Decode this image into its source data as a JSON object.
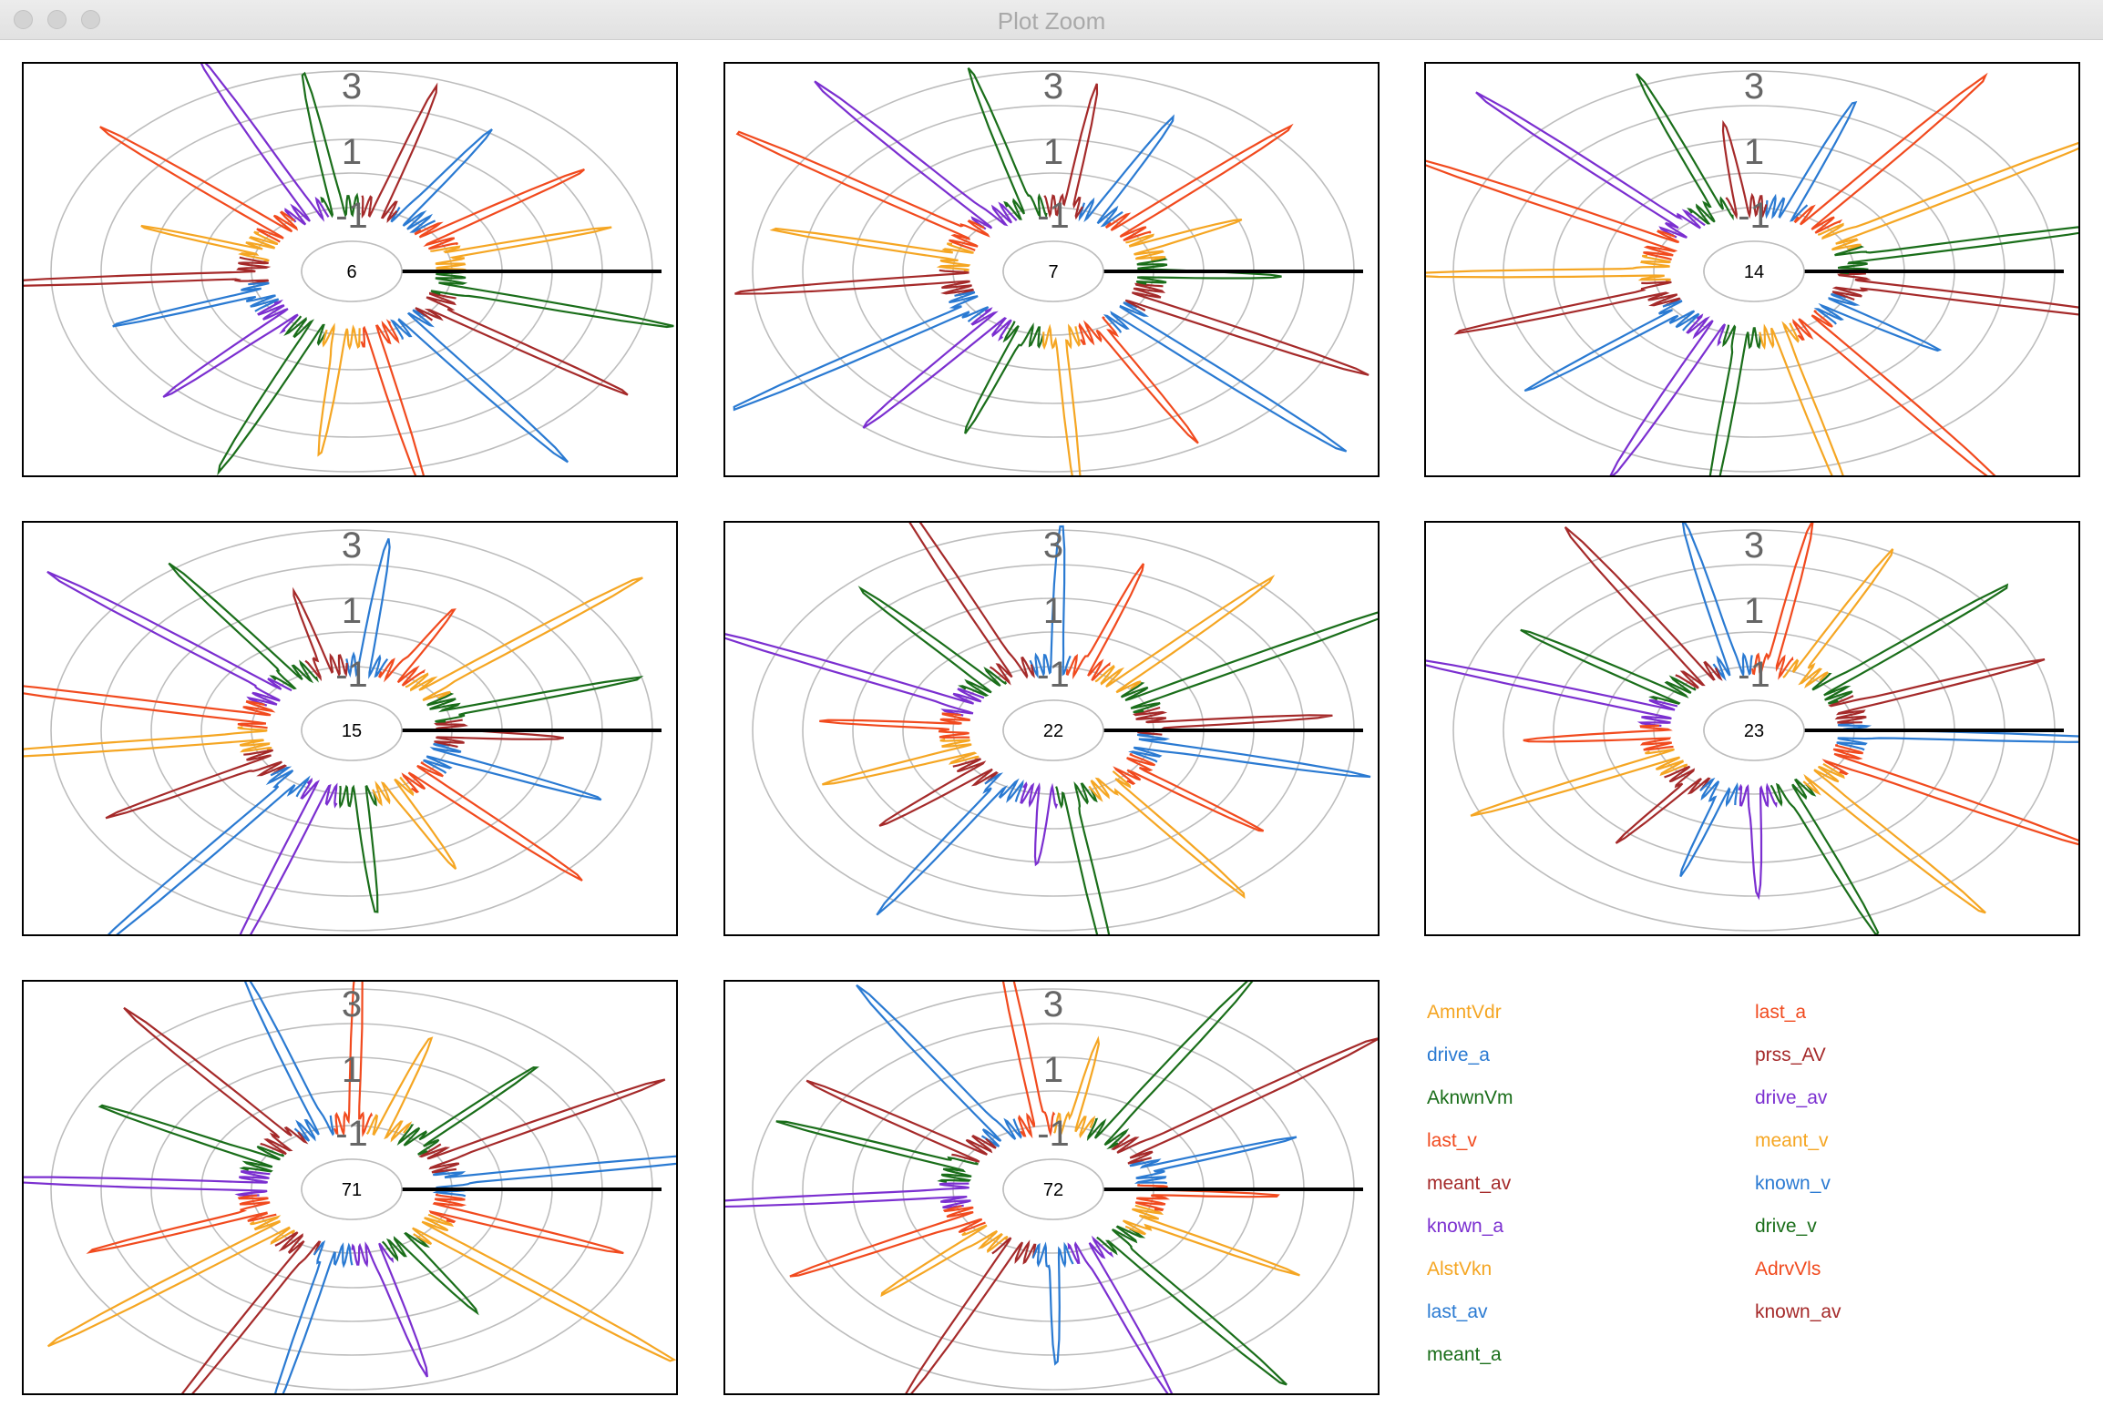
{
  "window": {
    "title": "Plot Zoom"
  },
  "chart_data": [
    {
      "type": "radial-line",
      "center_label": "6",
      "rticks": [
        "3",
        "1",
        "-1"
      ]
    },
    {
      "type": "radial-line",
      "center_label": "7",
      "rticks": [
        "3",
        "1",
        "-1"
      ]
    },
    {
      "type": "radial-line",
      "center_label": "14",
      "rticks": [
        "3",
        "1",
        "-1"
      ]
    },
    {
      "type": "radial-line",
      "center_label": "15",
      "rticks": [
        "3",
        "1",
        "-1"
      ]
    },
    {
      "type": "radial-line",
      "center_label": "22",
      "rticks": [
        "3",
        "1",
        "-1"
      ]
    },
    {
      "type": "radial-line",
      "center_label": "23",
      "rticks": [
        "3",
        "1",
        "-1"
      ]
    },
    {
      "type": "radial-line",
      "center_label": "71",
      "rticks": [
        "3",
        "1",
        "-1"
      ]
    },
    {
      "type": "radial-line",
      "center_label": "72",
      "rticks": [
        "3",
        "1",
        "-1"
      ]
    }
  ],
  "legend": [
    {
      "name": "AmntVdr",
      "color": "#f5a623"
    },
    {
      "name": "last_a",
      "color": "#f14a1e"
    },
    {
      "name": "drive_a",
      "color": "#2a7ad2"
    },
    {
      "name": "prss_AV",
      "color": "#a52a2a"
    },
    {
      "name": "AknwnVm",
      "color": "#1a6e1a"
    },
    {
      "name": "drive_av",
      "color": "#7b2fd0"
    },
    {
      "name": "last_v",
      "color": "#f14a1e"
    },
    {
      "name": "meant_v",
      "color": "#f5a623"
    },
    {
      "name": "meant_av",
      "color": "#a52a2a"
    },
    {
      "name": "known_v",
      "color": "#2a7ad2"
    },
    {
      "name": "known_a",
      "color": "#7b2fd0"
    },
    {
      "name": "drive_v",
      "color": "#1a6e1a"
    },
    {
      "name": "AlstVkn",
      "color": "#f5a623"
    },
    {
      "name": "AdrvVls",
      "color": "#f14a1e"
    },
    {
      "name": "last_av",
      "color": "#2a7ad2"
    },
    {
      "name": "known_av",
      "color": "#a52a2a"
    },
    {
      "name": "meant_a",
      "color": "#1a6e1a"
    }
  ]
}
